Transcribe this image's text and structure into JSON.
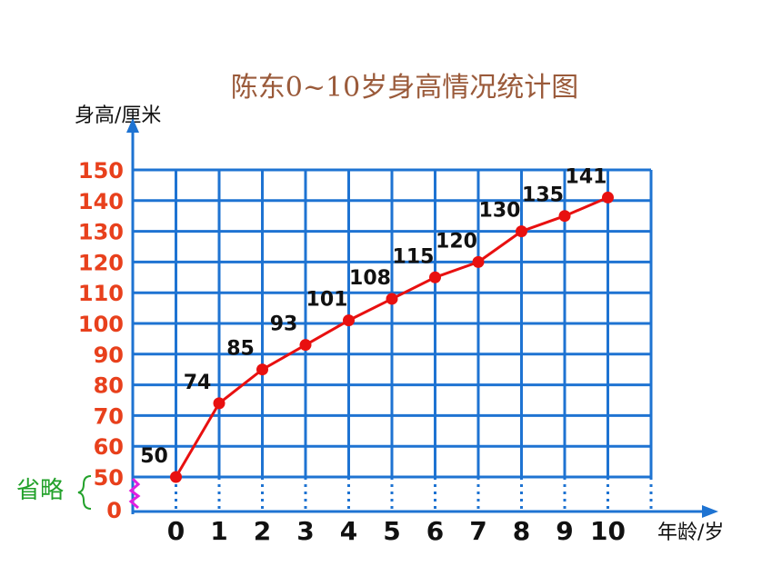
{
  "chart_data": {
    "type": "line",
    "title": "陈东0~10岁身高情况统计图",
    "ylabel": "身高/厘米",
    "xlabel": "年龄/岁",
    "categories": [
      "0",
      "1",
      "2",
      "3",
      "4",
      "5",
      "6",
      "7",
      "8",
      "9",
      "10"
    ],
    "values": [
      50,
      74,
      85,
      93,
      101,
      108,
      115,
      120,
      130,
      135,
      141
    ],
    "ylim": [
      50,
      150
    ],
    "yticks": [
      "50",
      "60",
      "70",
      "80",
      "90",
      "100",
      "110",
      "120",
      "130",
      "140",
      "150"
    ],
    "y_zero_label": "0",
    "omission_label": "省略",
    "grid": true,
    "line_color": "#e81010",
    "grid_color": "#1e73d2"
  }
}
